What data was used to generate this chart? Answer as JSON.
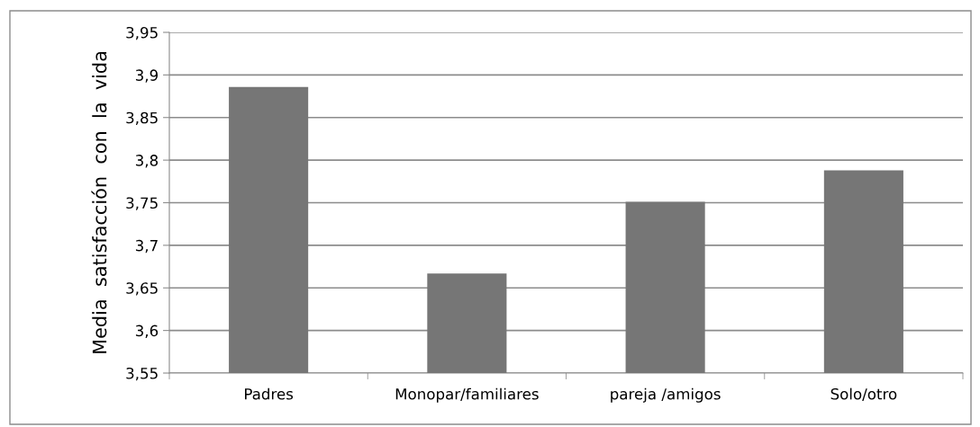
{
  "chart_data": {
    "type": "bar",
    "ylabel": "Media  satisfacción  con  la  vida",
    "categories": [
      "Padres",
      "Monopar/familiares",
      "pareja /amigos",
      "Solo/otro"
    ],
    "values": [
      3.886,
      3.667,
      3.751,
      3.788
    ],
    "color": "#767676",
    "ylim": [
      3.55,
      3.95
    ],
    "yticks": [
      {
        "value": 3.55,
        "label": "3,55"
      },
      {
        "value": 3.6,
        "label": "3,6"
      },
      {
        "value": 3.65,
        "label": "3,65"
      },
      {
        "value": 3.7,
        "label": "3,7"
      },
      {
        "value": 3.75,
        "label": "3,75"
      },
      {
        "value": 3.8,
        "label": "3,8"
      },
      {
        "value": 3.85,
        "label": "3,85"
      },
      {
        "value": 3.9,
        "label": "3,9"
      },
      {
        "value": 3.95,
        "label": "3,95"
      }
    ],
    "grid": "y",
    "legend": false
  }
}
